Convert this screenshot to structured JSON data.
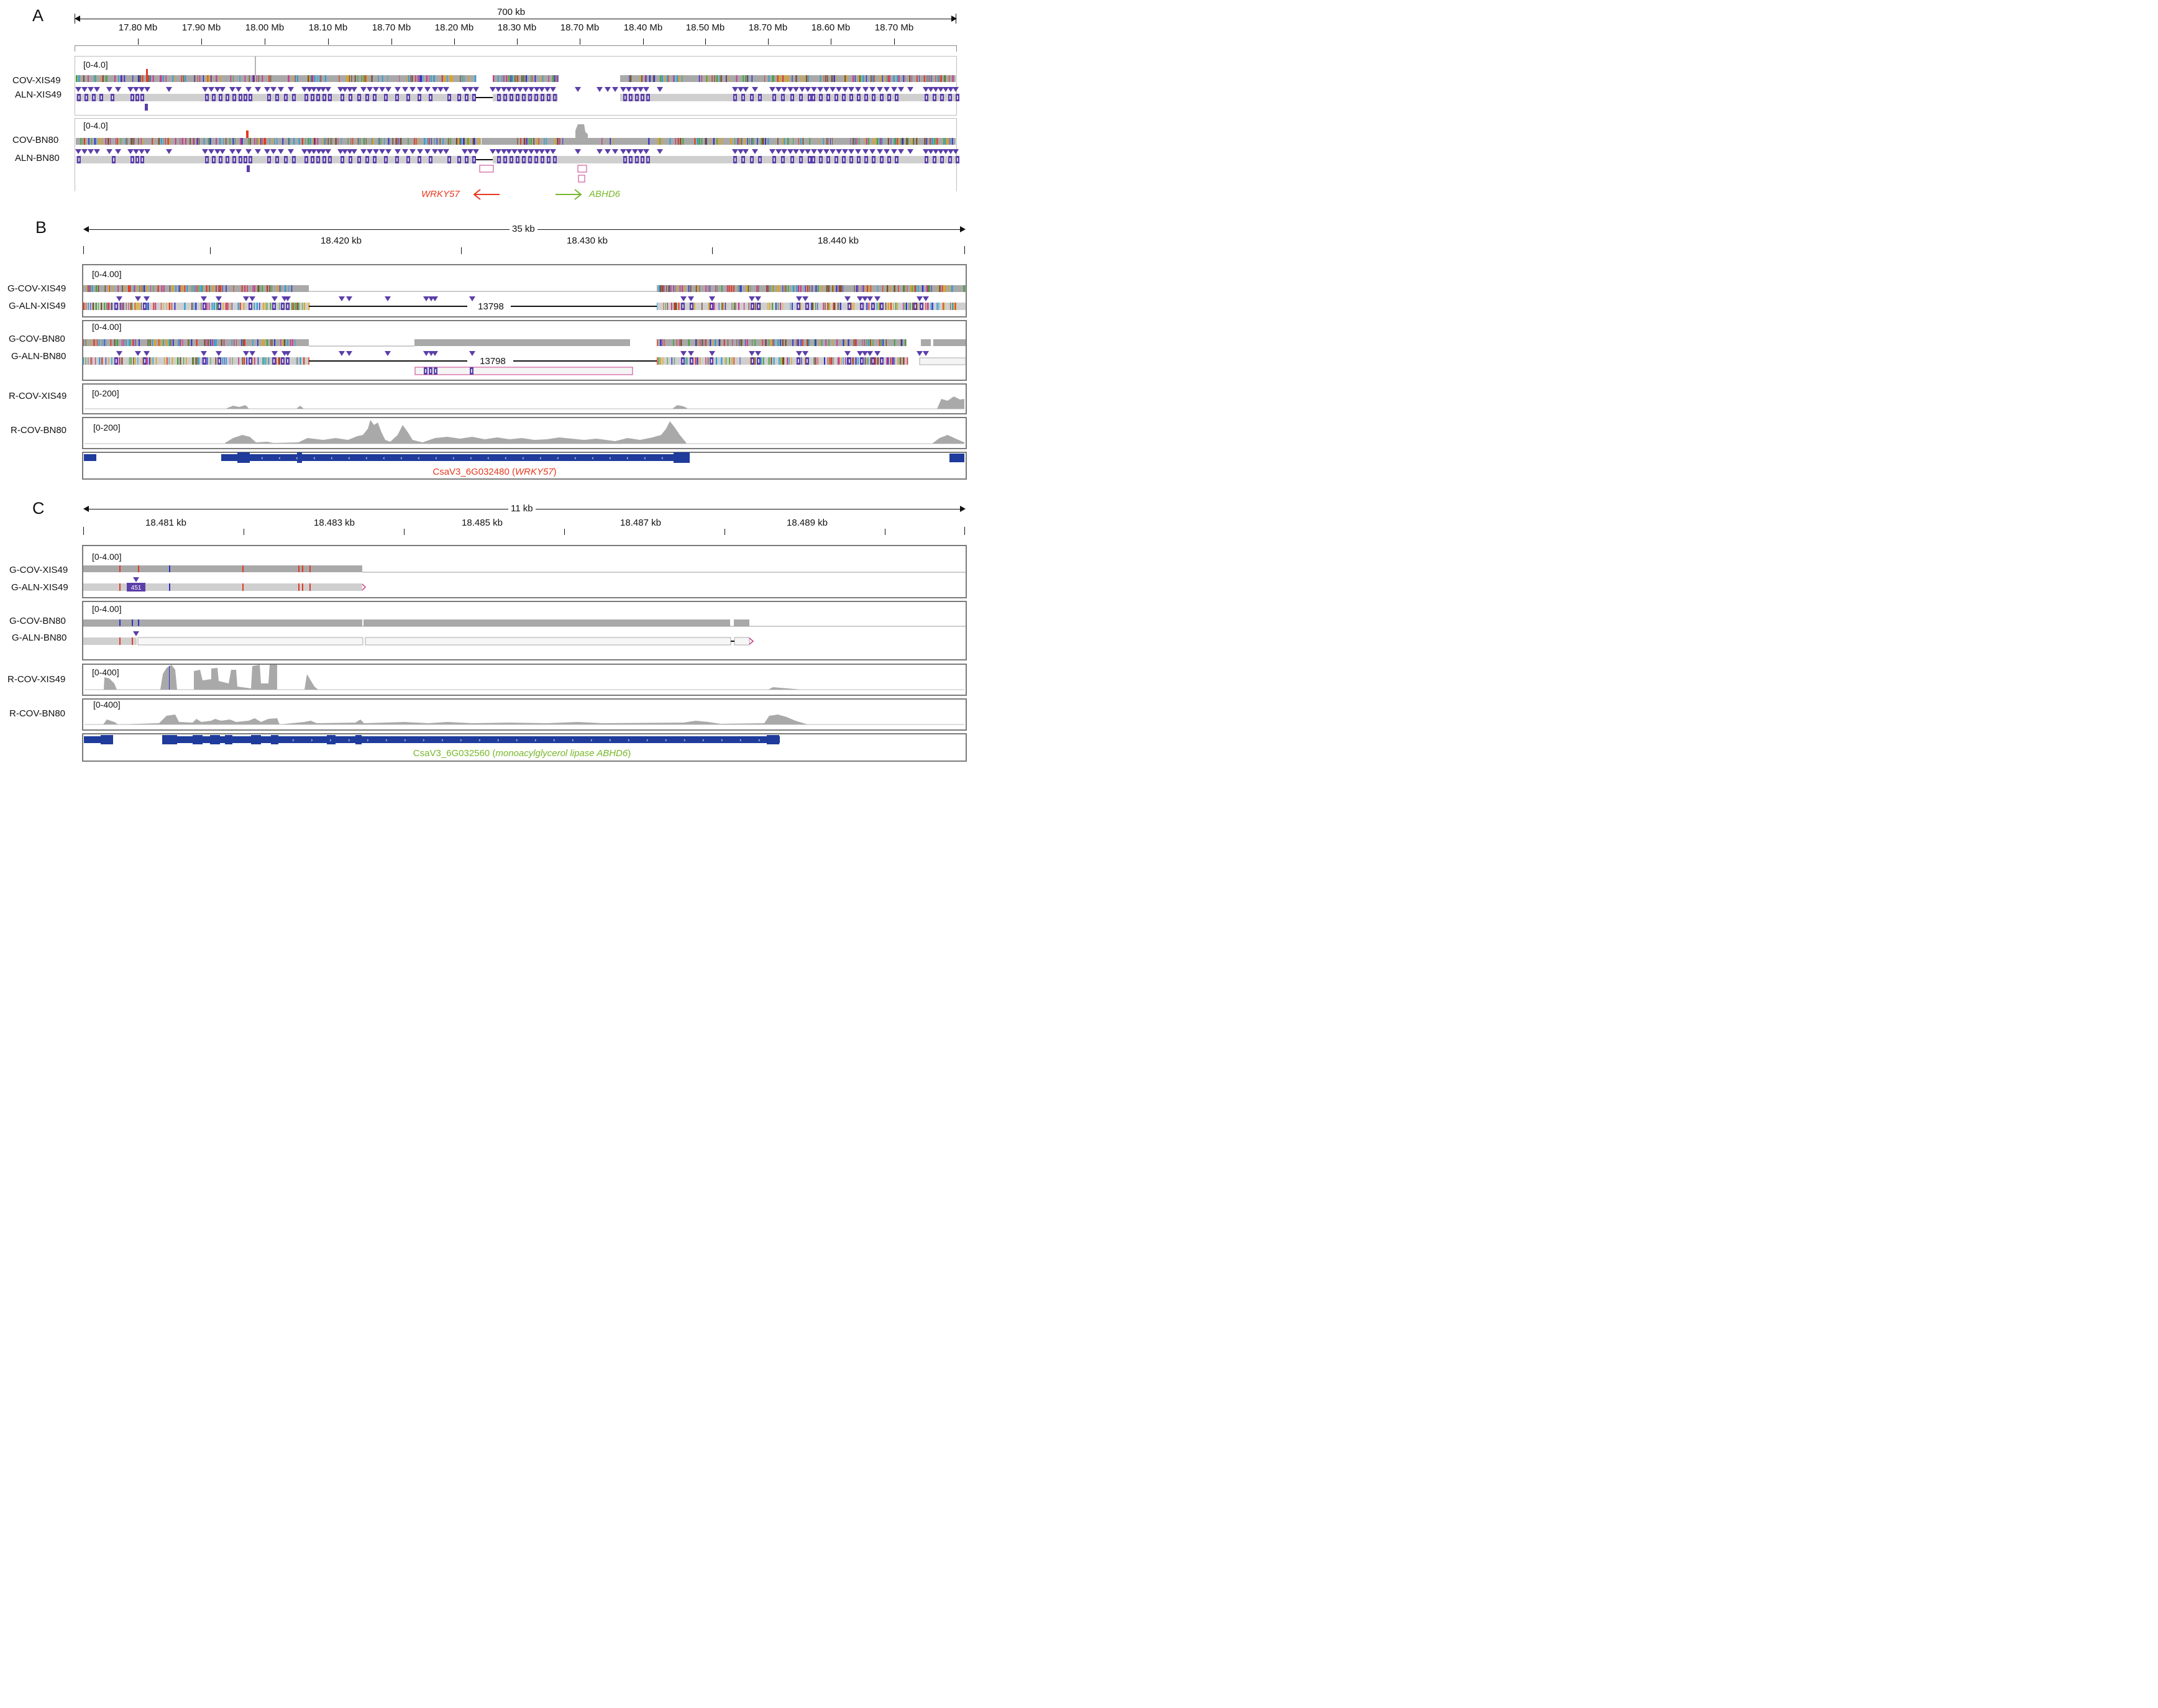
{
  "colors": {
    "coverage_gray": "#a9a9a9",
    "alignment_gray": "#cfcfcf",
    "insertion_purple": "#5b3fa8",
    "gene_navy": "#1f3c9c",
    "wrky_red": "#e8381e",
    "abhd_green": "#78b72a",
    "mismatch_colors": [
      "#2b2fd0",
      "#e23a22",
      "#3fa23a",
      "#e0a418",
      "#7a4a20",
      "#2a9fd6",
      "#c93a8a"
    ]
  },
  "panelA": {
    "letter": "A",
    "span": "700 kb",
    "ticks": [
      "17.80 Mb",
      "17.90 Mb",
      "18.00 Mb",
      "18.10 Mb",
      "18.70 Mb",
      "18.20 Mb",
      "18.30 Mb",
      "18.70 Mb",
      "18.40 Mb",
      "18.50 Mb",
      "18.70 Mb",
      "18.60 Mb",
      "18.70 Mb"
    ],
    "group1": {
      "range": "[0-4.0]",
      "cov": "COV-XIS49",
      "aln": "ALN-XIS49"
    },
    "group2": {
      "range": "[0-4.0]",
      "cov": "COV-BN80",
      "aln": "ALN-BN80"
    },
    "gene_left": "WRKY57",
    "gene_right": "ABHD6"
  },
  "panelB": {
    "letter": "B",
    "span": "35 kb",
    "ticks": [
      "18.420 kb",
      "18.430 kb",
      "18.440 kb"
    ],
    "group1": {
      "range": "[0-4.00]",
      "cov": "G-COV-XIS49",
      "aln": "G-ALN-XIS49",
      "gap": "13798"
    },
    "group2": {
      "range": "[0-4.00]",
      "cov": "G-COV-BN80",
      "aln": "G-ALN-BN80",
      "gap": "13798"
    },
    "rna1": {
      "range": "[0-200]",
      "label": "R-COV-XIS49"
    },
    "rna2": {
      "range": "[0-200]",
      "label": "R-COV-BN80"
    },
    "gene_id": "CsaV3_6G032480 (",
    "gene_name": "WRKY57",
    "gene_close": ")"
  },
  "panelC": {
    "letter": "C",
    "span": "11 kb",
    "ticks": [
      "18.481 kb",
      "18.483 kb",
      "18.485 kb",
      "18.487 kb",
      "18.489 kb"
    ],
    "group1": {
      "range": "[0-4.00]",
      "cov": "G-COV-XIS49",
      "aln": "G-ALN-XIS49",
      "ins": "451"
    },
    "group2": {
      "range": "[0-4.00]",
      "cov": "G-COV-BN80",
      "aln": "G-ALN-BN80"
    },
    "rna1": {
      "range": "[0-400]",
      "label": "R-COV-XIS49"
    },
    "rna2": {
      "range": "[0-400]",
      "label": "R-COV-BN80"
    },
    "gene_id": "CsaV3_6G032560 (",
    "gene_name": "monoacylglycerol lipase ABHD6",
    "gene_close": ")"
  }
}
